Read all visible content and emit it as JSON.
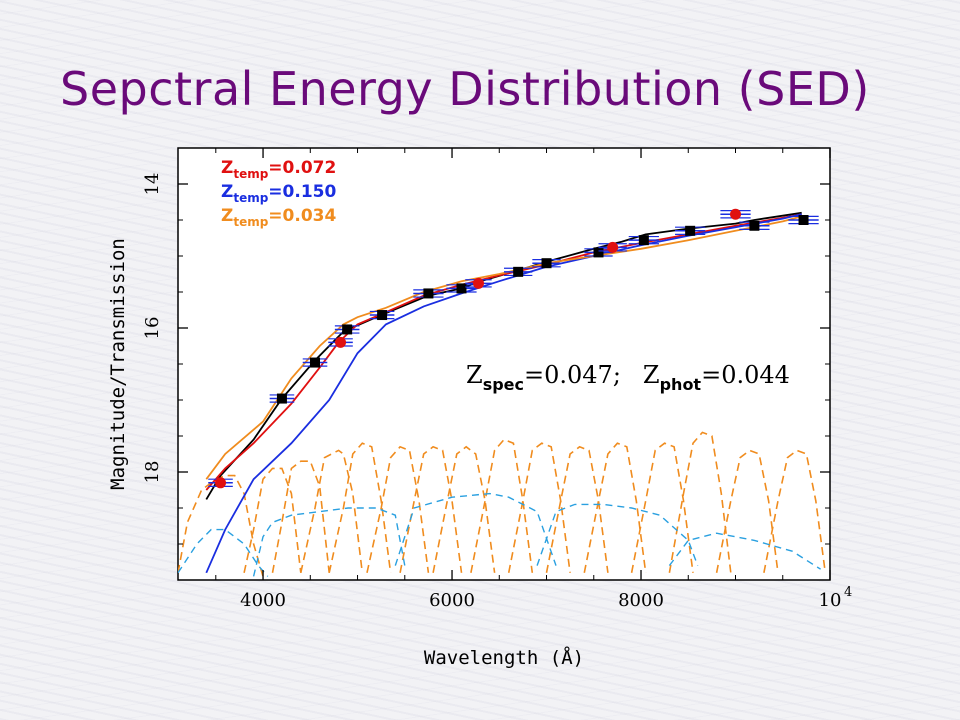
{
  "slide": {
    "title": "Sepctral Energy Distribution (SED)",
    "title_color": "#6a0a7a"
  },
  "chart_data": {
    "type": "line",
    "xlabel": "Wavelength (Å)",
    "ylabel": "Magnitude/Transmission",
    "xlim": [
      3100,
      10000
    ],
    "ylim": [
      19.5,
      13.5
    ],
    "y_inverted": true,
    "x_ticks": [
      {
        "value": 4000,
        "label": "4000"
      },
      {
        "value": 6000,
        "label": "6000"
      },
      {
        "value": 8000,
        "label": "8000"
      },
      {
        "value": 10000,
        "label": "10",
        "sup": "4"
      }
    ],
    "y_ticks": [
      {
        "value": 14,
        "label": "14"
      },
      {
        "value": 16,
        "label": "16"
      },
      {
        "value": 18,
        "label": "18"
      }
    ],
    "legend": {
      "placement": "top-left",
      "entries": [
        {
          "prefix": "Z",
          "sub": "temp",
          "text": "=0.072",
          "color": "#e01010"
        },
        {
          "prefix": "Z",
          "sub": "temp",
          "text": "=0.150",
          "color": "#1a2ee0"
        },
        {
          "prefix": "Z",
          "sub": "temp",
          "text": "=0.034",
          "color": "#f08c1e"
        }
      ]
    },
    "annotation": {
      "parts": [
        {
          "prefix": "Z",
          "sub": "spec",
          "text": "=0.047;"
        },
        {
          "prefix": "Z",
          "sub": "phot",
          "text": "=0.044"
        }
      ]
    },
    "series": [
      {
        "color": "#000000",
        "x": [
          3400,
          3550,
          3900,
          4200,
          4550,
          4850,
          4900,
          5250,
          5750,
          6100,
          6300,
          6700,
          7000,
          7500,
          7800,
          8050,
          8500,
          9000,
          9200,
          9700
        ],
        "y": [
          18.38,
          18.05,
          17.55,
          16.98,
          16.45,
          16.05,
          16.02,
          15.82,
          15.55,
          15.45,
          15.35,
          15.2,
          15.08,
          14.9,
          14.8,
          14.7,
          14.62,
          14.55,
          14.5,
          14.4
        ]
      },
      {
        "color": "#e01010",
        "x": [
          3400,
          3600,
          3900,
          4300,
          4600,
          4800,
          5000,
          5300,
          5700,
          6100,
          6500,
          7000,
          7500,
          8000,
          8500,
          9000,
          9500,
          9700
        ],
        "y": [
          18.25,
          17.95,
          17.6,
          17.05,
          16.55,
          16.2,
          15.95,
          15.78,
          15.55,
          15.4,
          15.27,
          15.12,
          14.95,
          14.82,
          14.7,
          14.58,
          14.47,
          14.42
        ]
      },
      {
        "color": "#1a2ee0",
        "x": [
          3400,
          3600,
          3900,
          4300,
          4700,
          5000,
          5300,
          5700,
          6100,
          6500,
          7000,
          7500,
          8000,
          8500,
          9000,
          9500,
          9700
        ],
        "y": [
          19.4,
          18.8,
          18.1,
          17.6,
          17.0,
          16.35,
          15.95,
          15.7,
          15.52,
          15.35,
          15.15,
          15.0,
          14.85,
          14.72,
          14.6,
          14.48,
          14.42
        ]
      },
      {
        "color": "#f08c1e",
        "x": [
          3400,
          3600,
          4000,
          4300,
          4600,
          4850,
          5000,
          5300,
          5700,
          6100,
          6500,
          7000,
          7500,
          8000,
          8500,
          9000,
          9500,
          9700
        ],
        "y": [
          18.1,
          17.75,
          17.3,
          16.7,
          16.25,
          15.95,
          15.85,
          15.72,
          15.5,
          15.35,
          15.25,
          15.1,
          15.0,
          14.9,
          14.78,
          14.65,
          14.52,
          14.45
        ]
      }
    ],
    "observed": {
      "color": "#000000",
      "points": [
        {
          "x": 4200,
          "y": 16.98,
          "xerr": 130,
          "yerr": 0.05
        },
        {
          "x": 4550,
          "y": 16.48,
          "xerr": 130,
          "yerr": 0.05
        },
        {
          "x": 4890,
          "y": 16.02,
          "xerr": 130,
          "yerr": 0.05
        },
        {
          "x": 5260,
          "y": 15.82,
          "xerr": 130,
          "yerr": 0.05
        },
        {
          "x": 5750,
          "y": 15.52,
          "xerr": 160,
          "yerr": 0.05
        },
        {
          "x": 6100,
          "y": 15.45,
          "xerr": 160,
          "yerr": 0.05
        },
        {
          "x": 6700,
          "y": 15.22,
          "xerr": 150,
          "yerr": 0.05
        },
        {
          "x": 7000,
          "y": 15.1,
          "xerr": 150,
          "yerr": 0.05
        },
        {
          "x": 7550,
          "y": 14.95,
          "xerr": 150,
          "yerr": 0.05
        },
        {
          "x": 8030,
          "y": 14.78,
          "xerr": 160,
          "yerr": 0.05
        },
        {
          "x": 8520,
          "y": 14.65,
          "xerr": 160,
          "yerr": 0.05
        },
        {
          "x": 9200,
          "y": 14.58,
          "xerr": 160,
          "yerr": 0.05
        },
        {
          "x": 9720,
          "y": 14.5,
          "xerr": 160,
          "yerr": 0.05
        }
      ]
    },
    "predicted": {
      "color": "#e01010",
      "points": [
        {
          "x": 3550,
          "y": 18.15,
          "xerr": 130,
          "yerr": 0.05
        },
        {
          "x": 4820,
          "y": 16.2,
          "xerr": 130,
          "yerr": 0.05
        },
        {
          "x": 6280,
          "y": 15.38,
          "xerr": 140,
          "yerr": 0.05
        },
        {
          "x": 7700,
          "y": 14.88,
          "xerr": 150,
          "yerr": 0.05
        },
        {
          "x": 9000,
          "y": 14.42,
          "xerr": 160,
          "yerr": 0.05
        }
      ]
    },
    "filters": {
      "color": "#f08c1e",
      "style": "dashed",
      "curves": [
        {
          "x": [
            3100,
            3200,
            3350,
            3500,
            3600,
            3700,
            3800,
            3900,
            4000
          ],
          "y": [
            19.4,
            18.7,
            18.25,
            18.1,
            18.05,
            18.05,
            18.3,
            19.0,
            19.45
          ]
        },
        {
          "x": [
            3800,
            3900,
            4000,
            4100,
            4200,
            4300,
            4400
          ],
          "y": [
            19.4,
            18.8,
            18.1,
            17.95,
            17.95,
            18.3,
            19.4
          ]
        },
        {
          "x": [
            4100,
            4200,
            4300,
            4400,
            4500,
            4600,
            4700
          ],
          "y": [
            19.4,
            18.7,
            17.95,
            17.85,
            17.85,
            18.2,
            19.4
          ]
        },
        {
          "x": [
            4400,
            4550,
            4650,
            4800,
            4850,
            4950,
            5050
          ],
          "y": [
            19.4,
            18.5,
            17.8,
            17.7,
            17.75,
            18.3,
            19.4
          ]
        },
        {
          "x": [
            4700,
            4850,
            4950,
            5050,
            5150,
            5250,
            5350
          ],
          "y": [
            19.4,
            18.5,
            17.75,
            17.6,
            17.65,
            18.4,
            19.4
          ]
        },
        {
          "x": [
            5100,
            5250,
            5350,
            5450,
            5550,
            5650,
            5750
          ],
          "y": [
            19.4,
            18.5,
            17.8,
            17.65,
            17.7,
            18.4,
            19.4
          ]
        },
        {
          "x": [
            5450,
            5600,
            5700,
            5800,
            5900,
            6000,
            6100
          ],
          "y": [
            19.4,
            18.4,
            17.75,
            17.65,
            17.7,
            18.4,
            19.4
          ]
        },
        {
          "x": [
            5800,
            5950,
            6050,
            6150,
            6250,
            6350,
            6450
          ],
          "y": [
            19.4,
            18.4,
            17.75,
            17.65,
            17.75,
            18.4,
            19.4
          ]
        },
        {
          "x": [
            6200,
            6350,
            6450,
            6550,
            6650,
            6750,
            6850
          ],
          "y": [
            19.4,
            18.4,
            17.7,
            17.55,
            17.6,
            18.4,
            19.4
          ]
        },
        {
          "x": [
            6600,
            6750,
            6850,
            6950,
            7050,
            7150,
            7250
          ],
          "y": [
            19.4,
            18.4,
            17.7,
            17.6,
            17.65,
            18.4,
            19.4
          ]
        },
        {
          "x": [
            7000,
            7150,
            7250,
            7350,
            7450,
            7550,
            7650
          ],
          "y": [
            19.4,
            18.4,
            17.75,
            17.65,
            17.7,
            18.4,
            19.4
          ]
        },
        {
          "x": [
            7400,
            7550,
            7650,
            7750,
            7850,
            7950,
            8050
          ],
          "y": [
            19.4,
            18.4,
            17.75,
            17.6,
            17.65,
            18.4,
            19.4
          ]
        },
        {
          "x": [
            7900,
            8050,
            8150,
            8250,
            8350,
            8450,
            8550
          ],
          "y": [
            19.4,
            18.4,
            17.7,
            17.6,
            17.65,
            18.4,
            19.4
          ]
        },
        {
          "x": [
            8300,
            8450,
            8550,
            8650,
            8750,
            8850,
            8950
          ],
          "y": [
            19.4,
            18.3,
            17.6,
            17.45,
            17.5,
            18.3,
            19.4
          ]
        },
        {
          "x": [
            8800,
            8950,
            9050,
            9150,
            9250,
            9350,
            9450
          ],
          "y": [
            19.4,
            18.4,
            17.8,
            17.7,
            17.75,
            18.4,
            19.4
          ]
        },
        {
          "x": [
            9300,
            9450,
            9550,
            9650,
            9750,
            9850,
            9950
          ],
          "y": [
            19.4,
            18.4,
            17.8,
            17.7,
            17.75,
            18.4,
            19.4
          ]
        }
      ]
    },
    "broadband": {
      "color": "#2aa0e0",
      "style": "dashed",
      "curves": [
        {
          "x": [
            3100,
            3300,
            3450,
            3600,
            3800,
            3950,
            4050
          ],
          "y": [
            19.4,
            19.0,
            18.8,
            18.8,
            19.0,
            19.3,
            19.45
          ]
        },
        {
          "x": [
            3900,
            4000,
            4100,
            4300,
            4600,
            4900,
            5200,
            5400,
            5500
          ],
          "y": [
            19.45,
            18.9,
            18.7,
            18.6,
            18.55,
            18.5,
            18.5,
            18.6,
            19.3
          ]
        },
        {
          "x": [
            5400,
            5600,
            6000,
            6400,
            6600,
            6900,
            7100
          ],
          "y": [
            19.3,
            18.5,
            18.35,
            18.3,
            18.35,
            18.55,
            19.3
          ]
        },
        {
          "x": [
            6900,
            7100,
            7300,
            7600,
            7900,
            8200,
            8500,
            8600
          ],
          "y": [
            19.3,
            18.55,
            18.45,
            18.45,
            18.5,
            18.6,
            18.95,
            19.3
          ]
        },
        {
          "x": [
            8300,
            8500,
            8800,
            9200,
            9600,
            9900
          ],
          "y": [
            19.3,
            18.95,
            18.85,
            18.95,
            19.1,
            19.35
          ]
        }
      ]
    }
  }
}
